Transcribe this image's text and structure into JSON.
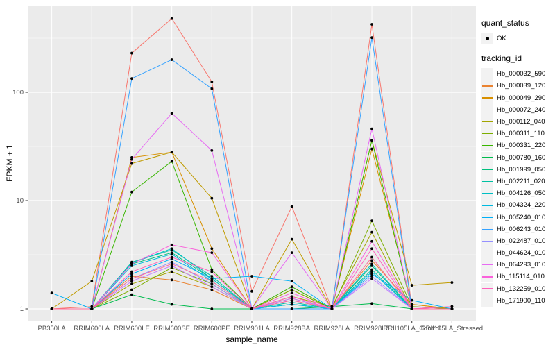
{
  "chart_data": {
    "type": "line",
    "title": "",
    "xlabel": "sample_name",
    "ylabel": "FPKM + 1",
    "y_scale": "log10",
    "y_ticks": [
      1,
      10,
      100
    ],
    "y_minor_ticks": [
      3.162,
      31.62,
      316.2
    ],
    "ylim": [
      0.78,
      634
    ],
    "grid": "on",
    "legend_position": "right",
    "point_marker": "filled-black-circle",
    "colors": {
      "panel_bg": "#EBEBEB",
      "grid": "#FFFFFF",
      "point": "#000000",
      "tick_text": "#4D4D4D",
      "axis_title_text": "#000000",
      "legend_key_bg": "#F2F2F2"
    },
    "legend": {
      "quant_status_title": "quant_status",
      "ok_label": "OK",
      "tracking_title": "tracking_id"
    },
    "categories": [
      "PB350LA",
      "RRIM600LA",
      "RRIM600LE",
      "RRIM600SE",
      "RRIM600PE",
      "RRIM901LA",
      "RRIM928BA",
      "RRIM928LA",
      "RRIM928LE",
      "RRII105LA_Control",
      "RRII105LA_Stressed"
    ],
    "series": [
      {
        "id": "Hb_000032_590",
        "color": "#F8766D",
        "values": [
          1.0,
          1.05,
          230,
          480,
          125,
          1.45,
          8.8,
          1.0,
          425,
          1.05,
          1.0
        ]
      },
      {
        "id": "Hb_000039_120",
        "color": "#EA8331",
        "values": [
          1.0,
          1.0,
          2.0,
          1.85,
          1.5,
          1.0,
          1.25,
          1.0,
          2.8,
          1.1,
          1.0
        ]
      },
      {
        "id": "Hb_000049_290",
        "color": "#D89000",
        "values": [
          1.0,
          1.0,
          25,
          28,
          3.6,
          1.0,
          1.5,
          1.0,
          30,
          1.1,
          1.0
        ]
      },
      {
        "id": "Hb_000072_240",
        "color": "#C09B00",
        "values": [
          1.0,
          1.8,
          22,
          28,
          10.5,
          1.0,
          4.4,
          1.0,
          36,
          1.65,
          1.75
        ]
      },
      {
        "id": "Hb_000112_040",
        "color": "#A3A500",
        "values": [
          1.0,
          1.0,
          1.7,
          2.2,
          1.6,
          1.0,
          1.3,
          1.05,
          5.1,
          1.0,
          1.0
        ]
      },
      {
        "id": "Hb_000311_110",
        "color": "#7CAE00",
        "values": [
          1.0,
          1.0,
          1.5,
          2.4,
          1.7,
          1.0,
          1.5,
          1.0,
          6.5,
          1.05,
          1.0
        ]
      },
      {
        "id": "Hb_000331_220",
        "color": "#39B600",
        "values": [
          1.0,
          1.0,
          12,
          23,
          2.3,
          1.0,
          1.6,
          1.0,
          36,
          1.0,
          1.0
        ]
      },
      {
        "id": "Hb_000780_160",
        "color": "#00BB4E",
        "values": [
          1.0,
          1.0,
          1.35,
          1.1,
          1.0,
          1.0,
          1.0,
          1.05,
          1.12,
          1.0,
          1.0
        ]
      },
      {
        "id": "Hb_001999_050",
        "color": "#00BF7D",
        "values": [
          1.0,
          1.0,
          2.6,
          3.3,
          1.9,
          1.0,
          1.1,
          1.0,
          2.5,
          1.0,
          1.0
        ]
      },
      {
        "id": "Hb_002211_020",
        "color": "#00C1A3",
        "values": [
          1.0,
          1.0,
          2.7,
          3.5,
          2.0,
          1.0,
          1.15,
          1.0,
          2.3,
          1.0,
          1.0
        ]
      },
      {
        "id": "Hb_004126_050",
        "color": "#00BFC4",
        "values": [
          1.0,
          1.0,
          2.65,
          3.6,
          1.9,
          1.0,
          1.1,
          1.0,
          2.6,
          1.0,
          1.0
        ]
      },
      {
        "id": "Hb_004324_220",
        "color": "#00BAE0",
        "values": [
          1.0,
          1.0,
          2.5,
          3.2,
          1.8,
          1.0,
          1.1,
          1.0,
          2.2,
          1.0,
          1.0
        ]
      },
      {
        "id": "Hb_005240_010",
        "color": "#00B0F6",
        "values": [
          1.4,
          1.0,
          2.1,
          2.9,
          1.9,
          2.0,
          1.8,
          1.0,
          2.1,
          1.2,
          1.0
        ]
      },
      {
        "id": "Hb_006243_010",
        "color": "#35A2FF",
        "values": [
          1.0,
          1.0,
          134,
          200,
          108,
          1.0,
          1.0,
          1.0,
          320,
          1.0,
          1.0
        ]
      },
      {
        "id": "Hb_022487_010",
        "color": "#9590FF",
        "values": [
          1.0,
          1.0,
          1.9,
          2.7,
          1.7,
          1.0,
          1.2,
          1.0,
          2.0,
          1.0,
          1.0
        ]
      },
      {
        "id": "Hb_044624_010",
        "color": "#C77CFF",
        "values": [
          1.0,
          1.0,
          1.8,
          2.5,
          1.6,
          1.0,
          1.25,
          1.0,
          1.9,
          1.0,
          1.0
        ]
      },
      {
        "id": "Hb_064293_010",
        "color": "#E76BF3",
        "values": [
          1.0,
          1.0,
          24,
          64,
          29,
          1.0,
          3.3,
          1.0,
          46,
          1.0,
          1.0
        ]
      },
      {
        "id": "Hb_115114_010",
        "color": "#FA62DB",
        "values": [
          1.0,
          1.0,
          2.6,
          3.9,
          3.3,
          1.0,
          1.4,
          1.0,
          4.2,
          1.0,
          1.05
        ]
      },
      {
        "id": "Hb_132259_010",
        "color": "#FF62BC",
        "values": [
          1.0,
          1.0,
          2.2,
          3.0,
          2.2,
          1.0,
          1.3,
          1.0,
          3.6,
          1.0,
          1.05
        ]
      },
      {
        "id": "Hb_171900_110",
        "color": "#FF6A98",
        "values": [
          1.0,
          1.0,
          1.9,
          2.6,
          1.8,
          1.0,
          1.2,
          1.0,
          3.0,
          1.0,
          1.0
        ]
      }
    ]
  }
}
